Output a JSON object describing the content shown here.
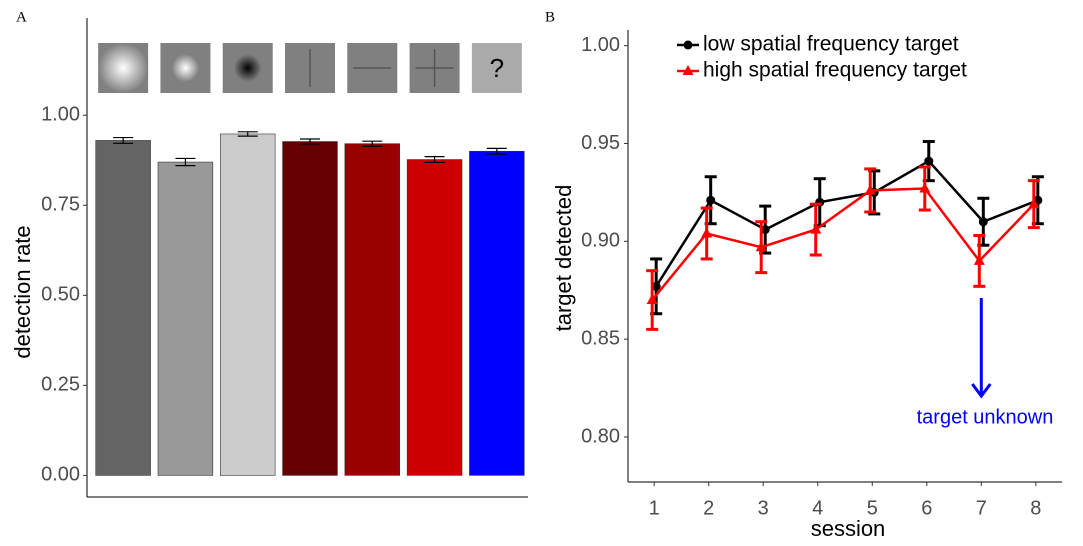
{
  "chart_data": [
    {
      "type": "bar",
      "panel_label": "A",
      "ylabel": "detection rate",
      "annotation": "?",
      "categories": [
        null,
        null,
        null,
        null,
        null,
        null,
        null
      ],
      "values": [
        0.93,
        0.87,
        0.948,
        0.927,
        0.921,
        0.877,
        0.9
      ],
      "errors": [
        0.008,
        0.01,
        0.006,
        0.007,
        0.007,
        0.008,
        0.008
      ],
      "colors": [
        "#646464",
        "#999999",
        "#cccccc",
        "#660000",
        "#990000",
        "#cc0000",
        "#0000ff"
      ],
      "ylim": [
        -0.06,
        1.27
      ],
      "yticks": [
        {
          "value": 0,
          "label": "0.00"
        },
        {
          "value": 0.25,
          "label": "0.25"
        },
        {
          "value": 0.5,
          "label": "0.50"
        },
        {
          "value": 0.75,
          "label": "0.75"
        },
        {
          "value": 1,
          "label": "1.00"
        }
      ]
    },
    {
      "type": "line",
      "panel_label": "B",
      "xlabel": "session",
      "ylabel": "target detected",
      "x": [
        1,
        2,
        3,
        4,
        5,
        6,
        7,
        8
      ],
      "series": [
        {
          "name": "low spatial frequency target",
          "color": "#000000",
          "marker": "circle",
          "values": [
            0.877,
            0.921,
            0.906,
            0.92,
            0.925,
            0.941,
            0.91,
            0.921
          ],
          "errors": [
            0.014,
            0.012,
            0.012,
            0.012,
            0.011,
            0.01,
            0.012,
            0.012
          ]
        },
        {
          "name": "high spatial frequency target",
          "color": "#ff0000",
          "marker": "triangle",
          "values": [
            0.87,
            0.904,
            0.897,
            0.906,
            0.926,
            0.927,
            0.89,
            0.919
          ],
          "errors": [
            0.015,
            0.013,
            0.013,
            0.013,
            0.011,
            0.011,
            0.013,
            0.012
          ]
        }
      ],
      "annotation": {
        "text": "target unknown",
        "color": "#0000ff",
        "x": 7
      },
      "xlim": [
        0.52,
        8.48
      ],
      "xticks": [
        1,
        2,
        3,
        4,
        5,
        6,
        7,
        8
      ],
      "ylim": [
        0.777,
        1.008
      ],
      "yticks": [
        {
          "value": 0.8,
          "label": "0.80"
        },
        0.85,
        {
          "value": 0.9,
          "label": "0.90"
        },
        0.95,
        {
          "value": 1,
          "label": "1.00"
        }
      ]
    }
  ]
}
